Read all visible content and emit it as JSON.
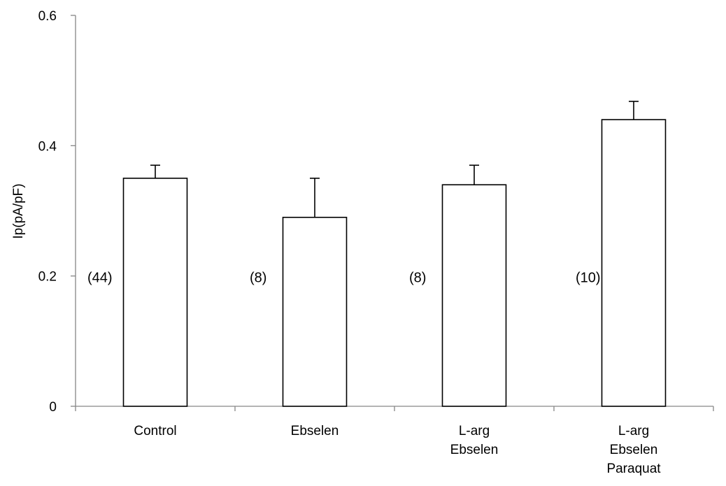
{
  "chart_data": {
    "type": "bar",
    "title": "",
    "xlabel": "",
    "ylabel": "Ip(pA/pF)",
    "ylim": [
      0,
      0.6
    ],
    "yticks": [
      0,
      0.2,
      0.4,
      0.6
    ],
    "ytick_labels": [
      "0",
      "0.2",
      "0.4",
      "0.6"
    ],
    "grid": false,
    "legend": "none",
    "categories": [
      [
        "Control"
      ],
      [
        "Ebselen"
      ],
      [
        "L-arg",
        "Ebselen"
      ],
      [
        "L-arg",
        "Ebselen",
        "Paraquat"
      ]
    ],
    "values": [
      0.35,
      0.29,
      0.34,
      0.44
    ],
    "errors": [
      0.02,
      0.06,
      0.03,
      0.028
    ],
    "annotations": [
      "(44)",
      "(8)",
      "(8)",
      "(10)"
    ],
    "annotation_y": 0.2,
    "colors": {
      "bar_fill": "#ffffff",
      "bar_stroke": "#000000",
      "axis": "#868686"
    }
  }
}
